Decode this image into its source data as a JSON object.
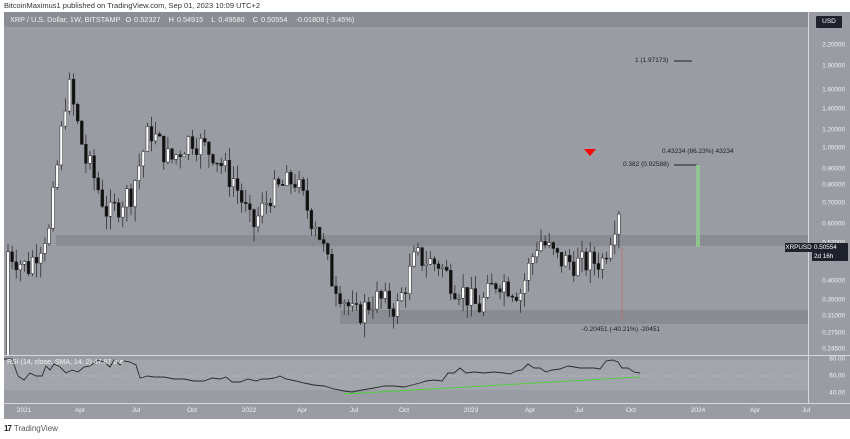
{
  "publish_line": "BitcoinMaximus1 published on TradingView.com, Sep 01, 2023 10:09 UTC+2",
  "symbol_info": {
    "title": "XRP / U.S. Dollar, 1W, BITSTAMP",
    "open_label": "O",
    "open": "0.52327",
    "high_label": "H",
    "high": "0.54915",
    "low_label": "L",
    "low": "0.49580",
    "close_label": "C",
    "close": "0.50554",
    "change": "-0.01808 (-3.45%)"
  },
  "price_axis": {
    "currency_badge": "USD",
    "ticks": [
      "2.20000",
      "1.90000",
      "1.60000",
      "1.40000",
      "1.20000",
      "1.05000",
      "0.90000",
      "0.80000",
      "0.70000",
      "0.60000",
      "0.52000",
      "0.40000",
      "0.35000",
      "0.31000",
      "0.27500",
      "0.24500"
    ],
    "current_symbol": "XRPUSD",
    "current_price": "0.50554",
    "countdown": "2d 16h"
  },
  "rsi_axis": {
    "ticks": [
      "80.00",
      "60.00",
      "40.00"
    ]
  },
  "rsi_label": "RSI (14, close, SMA, 14, 2)  47.87  ø  ø",
  "time_axis": {
    "labels": [
      "2021",
      "Apr",
      "Jul",
      "Oct",
      "2022",
      "Apr",
      "Jul",
      "Oct",
      "2023",
      "Apr",
      "Jul",
      "Oct",
      "2024",
      "Apr",
      "Jul"
    ]
  },
  "annotations": {
    "fib_1": "1 (1.97173)",
    "fib_0382": "0.382 (0.92588)",
    "measure_up": "0.43234 (86.23%) 43234",
    "measure_down": "-0.20451 (-40.21%) -20451"
  },
  "footer": {
    "logo_mark": "17",
    "logo_text": "TradingView"
  },
  "colors": {
    "background": "#9a9ca4",
    "bull_candle": "#ffffff",
    "bear_candle": "#111111",
    "zone": "#8a8c93",
    "signal_marker": "#ff0000",
    "measure_bar": "#8fc98f",
    "rsi_line": "#2a2a2a",
    "rsi_trendline": "#4cd137"
  },
  "chart_data": {
    "type": "candlestick",
    "title": "XRP / U.S. Dollar, 1W, BITSTAMP",
    "xlabel": "",
    "ylabel": "USD",
    "y_scale": "log",
    "ylim": [
      0.24,
      2.35
    ],
    "x_range": [
      "2020-12",
      "2024-07"
    ],
    "last": {
      "open": 0.52327,
      "high": 0.54915,
      "low": 0.4958,
      "close": 0.50554,
      "change": -0.01808,
      "change_pct": -3.45
    },
    "horizontal_zones": [
      {
        "name": "resistance",
        "low": 0.49,
        "high": 0.55
      },
      {
        "name": "support",
        "low": 0.285,
        "high": 0.31
      }
    ],
    "annotations": [
      {
        "text": "1 (1.97173)",
        "price": 1.97173
      },
      {
        "text": "0.382 (0.92588)",
        "price": 0.92588
      },
      {
        "text": "0.43234 (86.23%) 43234",
        "type": "measure",
        "from": 0.5,
        "to": 0.93
      },
      {
        "text": "-0.20451 (-40.21%) -20451",
        "type": "measure",
        "from": 0.51,
        "to": 0.31
      }
    ],
    "approx_monthly_closes": {
      "x": [
        "2021-01",
        "2021-02",
        "2021-03",
        "2021-04",
        "2021-05",
        "2021-06",
        "2021-07",
        "2021-08",
        "2021-09",
        "2021-10",
        "2021-11",
        "2021-12",
        "2022-01",
        "2022-02",
        "2022-03",
        "2022-04",
        "2022-05",
        "2022-06",
        "2022-07",
        "2022-08",
        "2022-09",
        "2022-10",
        "2022-11",
        "2022-12",
        "2023-01",
        "2023-02",
        "2023-03",
        "2023-04",
        "2023-05",
        "2023-06",
        "2023-07",
        "2023-08"
      ],
      "values": [
        0.5,
        0.45,
        0.57,
        1.55,
        0.9,
        0.65,
        0.75,
        1.15,
        0.95,
        1.1,
        1.0,
        0.83,
        0.6,
        0.76,
        0.82,
        0.62,
        0.4,
        0.32,
        0.36,
        0.34,
        0.48,
        0.46,
        0.39,
        0.34,
        0.41,
        0.38,
        0.54,
        0.47,
        0.46,
        0.47,
        0.7,
        0.51
      ]
    },
    "rsi": {
      "params": "14, close, SMA, 14, 2",
      "value": 47.87,
      "ylim": [
        25,
        85
      ],
      "ticks": [
        80,
        60,
        40
      ]
    }
  }
}
